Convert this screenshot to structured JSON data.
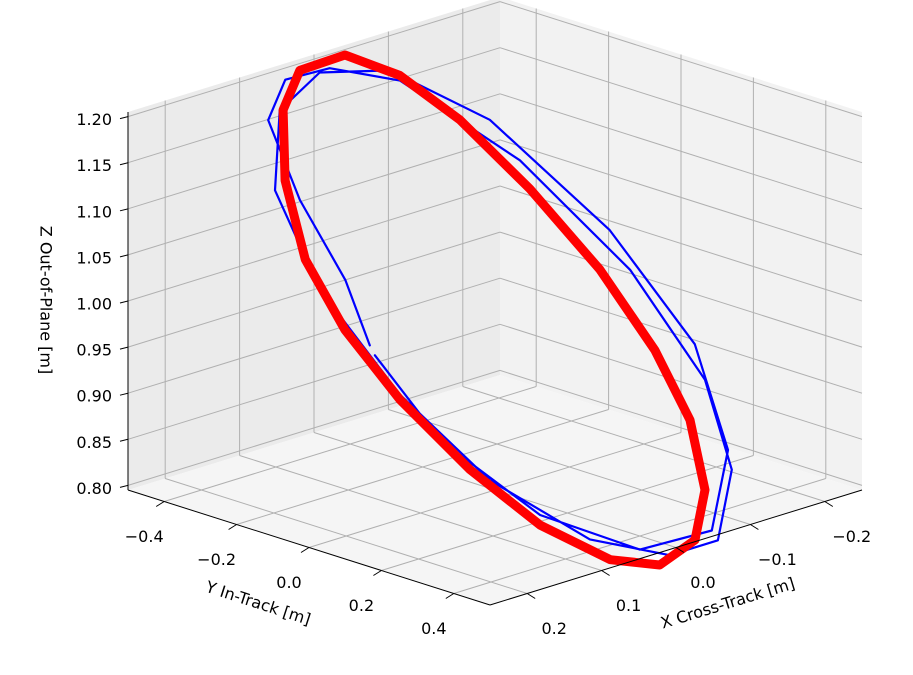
{
  "chart_data": {
    "type": "line3d",
    "xlabel": "X Cross-Track [m]",
    "ylabel": "Y In-Track [m]",
    "zlabel": "Z Out-of-Plane [m]",
    "xlim": [
      -0.25,
      0.25
    ],
    "ylim": [
      -0.5,
      0.5
    ],
    "zlim": [
      0.795,
      1.205
    ],
    "xticks": [
      {
        "value": -0.2,
        "label": "−0.2"
      },
      {
        "value": -0.1,
        "label": "−0.1"
      },
      {
        "value": 0.0,
        "label": "0.0"
      },
      0.1,
      0.2
    ],
    "yticks": [
      {
        "value": -0.4,
        "label": "−0.4"
      },
      {
        "value": -0.2,
        "label": "−0.2"
      },
      {
        "value": 0.0,
        "label": "0.0"
      },
      0.2,
      0.4
    ],
    "zticks": [
      {
        "value": 0.8,
        "label": "0.80"
      },
      {
        "value": 0.85,
        "label": "0.85"
      },
      {
        "value": 0.9,
        "label": "0.90"
      },
      {
        "value": 0.95,
        "label": "0.95"
      },
      {
        "value": 1.0,
        "label": "1.00"
      },
      {
        "value": 1.05,
        "label": "1.05"
      },
      {
        "value": 1.1,
        "label": "1.10"
      },
      {
        "value": 1.15,
        "label": "1.15"
      },
      {
        "value": 1.2,
        "label": "1.20"
      }
    ],
    "grid": true,
    "series": [
      {
        "color": "#0000ff",
        "x": [
          0.141,
          0.12,
          0.108,
          0.083,
          0.04,
          -0.009,
          -0.066,
          -0.123,
          -0.151,
          -0.146,
          -0.11,
          -0.05,
          0.005,
          0.069,
          0.121,
          0.147,
          0.15,
          0.124,
          0.066,
          0.003,
          -0.063,
          -0.122,
          -0.159,
          -0.16,
          -0.12,
          -0.051,
          0.029,
          0.098,
          0.14,
          0.143
        ],
        "y": [
          -0.056,
          -0.167,
          -0.317,
          -0.456,
          -0.497,
          -0.475,
          -0.398,
          -0.184,
          0.063,
          0.28,
          0.428,
          0.513,
          0.493,
          0.404,
          0.234,
          0.039,
          -0.175,
          -0.353,
          -0.459,
          -0.478,
          -0.42,
          -0.265,
          -0.01,
          0.223,
          0.397,
          0.494,
          0.46,
          0.326,
          0.136,
          -0.038
        ],
        "z": [
          0.98,
          1.032,
          1.097,
          1.16,
          1.188,
          1.191,
          1.173,
          1.099,
          1.004,
          0.913,
          0.843,
          0.792,
          0.787,
          0.809,
          0.865,
          0.94,
          1.028,
          1.107,
          1.166,
          1.189,
          1.182,
          1.133,
          1.036,
          0.941,
          0.858,
          0.8,
          0.795,
          0.833,
          0.901,
          0.972
        ]
      },
      {
        "color": "#ff0000",
        "x": [
          -0.032,
          0.02,
          0.063,
          0.108,
          0.143,
          0.154,
          0.15,
          0.132,
          0.104,
          0.063,
          0.021,
          -0.029,
          -0.072,
          -0.105,
          -0.12,
          -0.123,
          -0.112,
          -0.094,
          -0.069,
          -0.032
        ],
        "y": [
          -0.48,
          -0.498,
          -0.456,
          -0.358,
          -0.23,
          -0.098,
          0.046,
          0.203,
          0.339,
          0.448,
          0.498,
          0.493,
          0.432,
          0.323,
          0.195,
          0.037,
          -0.134,
          -0.291,
          -0.405,
          -0.48
        ],
        "z": [
          1.199,
          1.193,
          1.166,
          1.113,
          1.052,
          0.995,
          0.936,
          0.875,
          0.825,
          0.791,
          0.781,
          0.795,
          0.831,
          0.885,
          0.941,
          1.008,
          1.077,
          1.137,
          1.177,
          1.199
        ]
      }
    ]
  }
}
